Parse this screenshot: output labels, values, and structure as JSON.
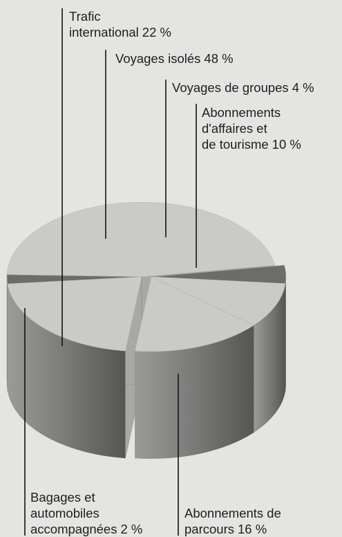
{
  "chart_data": {
    "type": "pie",
    "categories": [
      "Bagages et\nautomobiles\naccompagnées",
      "Voyages isolés",
      "Voyages de groupes",
      "Abonnements\nd'affaires et\nde tourisme",
      "Abonnements de\nparcours",
      "Trafic\ninternational"
    ],
    "values": [
      2,
      48,
      4,
      10,
      16,
      22
    ],
    "value_labels": [
      "2 %",
      "48 %",
      "4 %",
      "10 %",
      "16 %",
      "22 %"
    ],
    "colors": [
      "#6c6c6a",
      "#cacac8",
      "#6c6c6a",
      "#cacac8",
      "#cacac8",
      "#cacac8"
    ],
    "exploded": [
      false,
      false,
      true,
      true,
      true,
      false
    ]
  }
}
